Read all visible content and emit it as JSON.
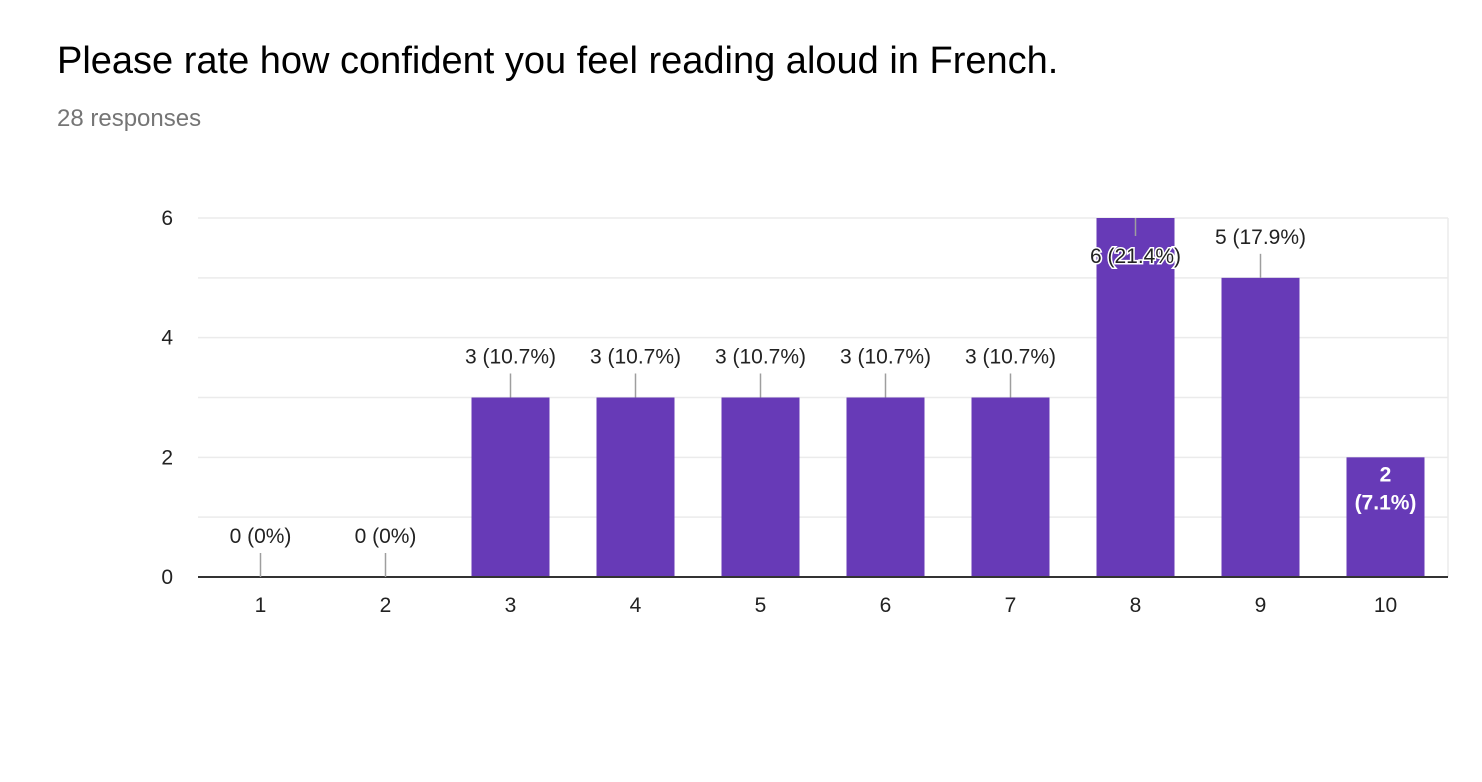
{
  "question": {
    "title": "Please rate how confident you feel reading aloud in French.",
    "responses": "28 responses"
  },
  "colors": {
    "bar": "#673ab7",
    "axis": "#333333",
    "grid": "#ebebeb",
    "leader": "#9e9e9e"
  },
  "chart_data": {
    "type": "bar",
    "categories": [
      "1",
      "2",
      "3",
      "4",
      "5",
      "6",
      "7",
      "8",
      "9",
      "10"
    ],
    "values": [
      0,
      0,
      3,
      3,
      3,
      3,
      3,
      6,
      5,
      2
    ],
    "data_labels": [
      "0 (0%)",
      "0 (0%)",
      "3 (10.7%)",
      "3 (10.7%)",
      "3 (10.7%)",
      "3 (10.7%)",
      "3 (10.7%)",
      "6 (21.4%)",
      "5 (17.9%)",
      "2 (7.1%)"
    ],
    "y_ticks": [
      0,
      2,
      4,
      6
    ],
    "ylim": [
      0,
      6
    ],
    "grid": true,
    "legend": "none"
  }
}
